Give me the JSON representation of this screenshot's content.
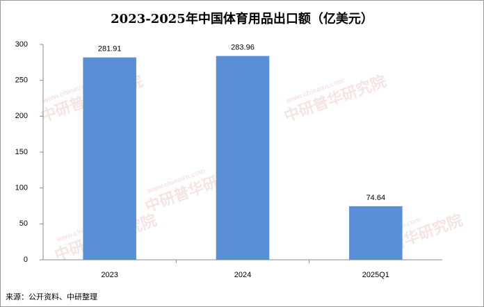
{
  "chart_data": {
    "type": "bar",
    "title": "2023-2025年中国体育用品出口额（亿美元）",
    "categories": [
      "2023",
      "2024",
      "2025Q1"
    ],
    "values": [
      281.91,
      283.96,
      74.64
    ],
    "color": "#5a8ed5",
    "ylim": [
      0,
      300
    ],
    "yticks": [
      0,
      50,
      100,
      150,
      200,
      250,
      300
    ],
    "grid": false,
    "source": "来源：公开资料、中研整理",
    "watermark": "中研普华研究院",
    "watermark_url": "www.chinairn.com"
  }
}
